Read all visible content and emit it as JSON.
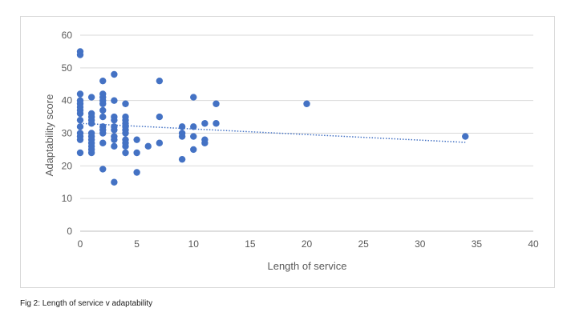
{
  "caption": "Fig 2: Length of service v adaptability",
  "chart_data": {
    "type": "scatter",
    "title": "",
    "xlabel": "Length of service",
    "ylabel": "Adaptability score",
    "xlim": [
      0,
      40
    ],
    "ylim": [
      0,
      60
    ],
    "xticks": [
      0,
      5,
      10,
      15,
      20,
      25,
      30,
      35,
      40
    ],
    "yticks": [
      0,
      10,
      20,
      30,
      40,
      50,
      60
    ],
    "grid": "horizontal",
    "legend": "none",
    "marker_color": "#4472C4",
    "trendline": {
      "type": "linear",
      "style": "dotted",
      "from": [
        0,
        33
      ],
      "to": [
        34,
        27.2
      ]
    },
    "points": [
      [
        0,
        55
      ],
      [
        0,
        54
      ],
      [
        0,
        42
      ],
      [
        0,
        40
      ],
      [
        0,
        39
      ],
      [
        0,
        38
      ],
      [
        0,
        37
      ],
      [
        0,
        36
      ],
      [
        0,
        34
      ],
      [
        0,
        32
      ],
      [
        0,
        30
      ],
      [
        0,
        29
      ],
      [
        0,
        28
      ],
      [
        0,
        24
      ],
      [
        1,
        41
      ],
      [
        1,
        36
      ],
      [
        1,
        35
      ],
      [
        1,
        34
      ],
      [
        1,
        33
      ],
      [
        1,
        30
      ],
      [
        1,
        29
      ],
      [
        1,
        28
      ],
      [
        1,
        27
      ],
      [
        1,
        26
      ],
      [
        1,
        25
      ],
      [
        1,
        24
      ],
      [
        2,
        46
      ],
      [
        2,
        42
      ],
      [
        2,
        41
      ],
      [
        2,
        40
      ],
      [
        2,
        39
      ],
      [
        2,
        37
      ],
      [
        2,
        35
      ],
      [
        2,
        32
      ],
      [
        2,
        31
      ],
      [
        2,
        30
      ],
      [
        2,
        27
      ],
      [
        2,
        19
      ],
      [
        3,
        48
      ],
      [
        3,
        40
      ],
      [
        3,
        35
      ],
      [
        3,
        34
      ],
      [
        3,
        32
      ],
      [
        3,
        31
      ],
      [
        3,
        29
      ],
      [
        3,
        28
      ],
      [
        3,
        26
      ],
      [
        3,
        15
      ],
      [
        4,
        39
      ],
      [
        4,
        35
      ],
      [
        4,
        34
      ],
      [
        4,
        33
      ],
      [
        4,
        32
      ],
      [
        4,
        31
      ],
      [
        4,
        30
      ],
      [
        4,
        28
      ],
      [
        4,
        27
      ],
      [
        4,
        26
      ],
      [
        4,
        24
      ],
      [
        5,
        28
      ],
      [
        5,
        24
      ],
      [
        5,
        18
      ],
      [
        6,
        26
      ],
      [
        7,
        46
      ],
      [
        7,
        35
      ],
      [
        7,
        27
      ],
      [
        9,
        32
      ],
      [
        9,
        30
      ],
      [
        9,
        29
      ],
      [
        9,
        22
      ],
      [
        10,
        41
      ],
      [
        10,
        32
      ],
      [
        10,
        29
      ],
      [
        10,
        25
      ],
      [
        11,
        33
      ],
      [
        11,
        28
      ],
      [
        11,
        27
      ],
      [
        12,
        39
      ],
      [
        12,
        33
      ],
      [
        20,
        39
      ],
      [
        34,
        29
      ]
    ]
  }
}
